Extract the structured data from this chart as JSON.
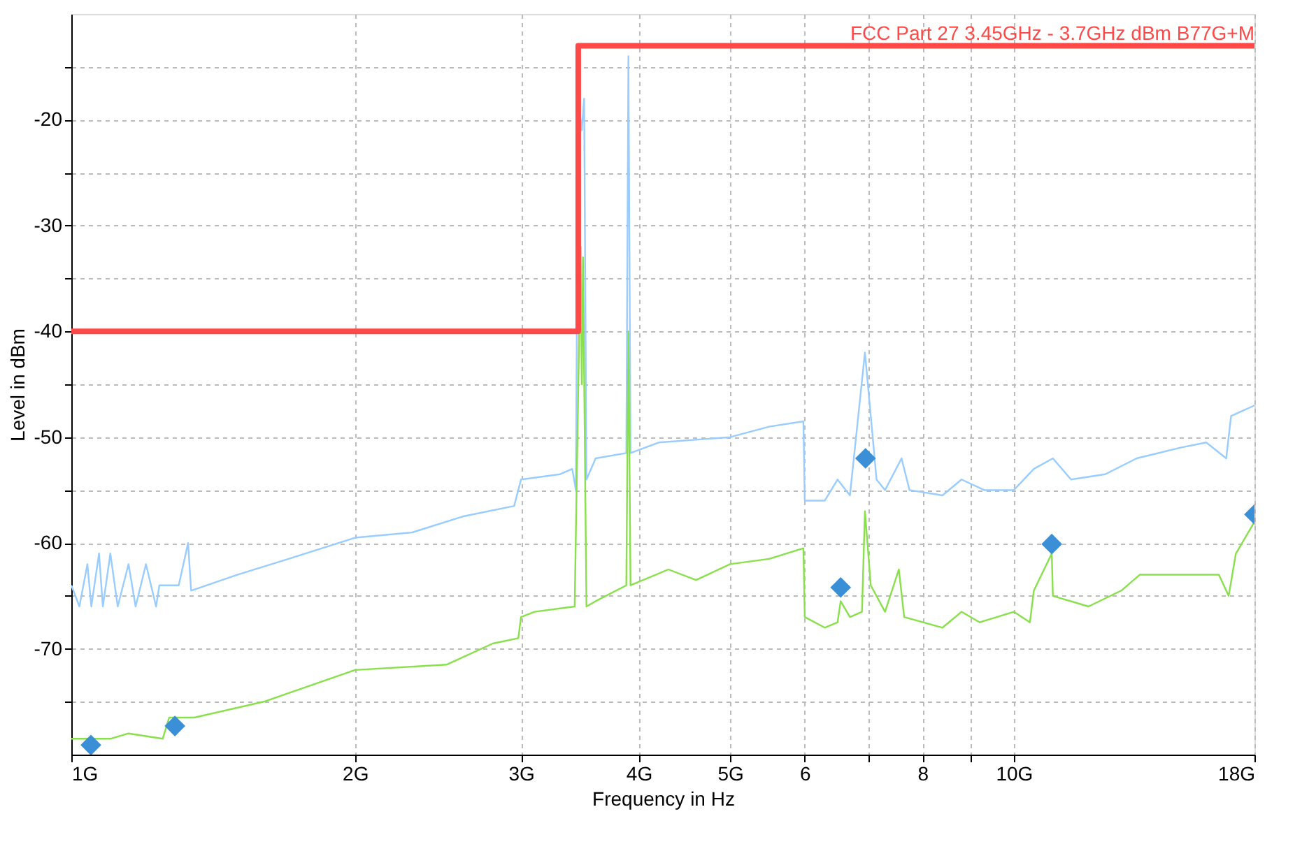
{
  "chart_data": {
    "type": "line",
    "xlabel": "Frequency in Hz",
    "ylabel": "Level in dBm",
    "log": "x",
    "xlim": [
      1,
      18
    ],
    "ylim": [
      -80,
      -10
    ],
    "xticks": [
      {
        "value": 1,
        "label": "1G"
      },
      {
        "value": 2,
        "label": "2G"
      },
      {
        "value": 3,
        "label": "3G"
      },
      {
        "value": 4,
        "label": "4G"
      },
      {
        "value": 5,
        "label": "5G"
      },
      6,
      {
        "value": 7,
        "label": null
      },
      8,
      {
        "value": 9,
        "label": null
      },
      {
        "value": 10,
        "label": "10G"
      },
      {
        "value": 18,
        "label": "18G"
      }
    ],
    "yticks": [
      {
        "value": -75,
        "label": null
      },
      -70,
      {
        "value": -65,
        "label": null
      },
      -60,
      {
        "value": -55,
        "label": null
      },
      -50,
      {
        "value": -45,
        "label": null
      },
      -40,
      {
        "value": -35,
        "label": null
      },
      -30,
      {
        "value": -25,
        "label": null
      },
      -20,
      {
        "value": -15,
        "label": null
      }
    ],
    "grid": true,
    "legend": false,
    "line_style": "solid",
    "series": [
      {
        "marker": "none",
        "color": "#99ccff",
        "x": [
          1.0,
          1.02,
          1.04,
          1.05,
          1.07,
          1.08,
          1.1,
          1.12,
          1.15,
          1.17,
          1.2,
          1.23,
          1.24,
          1.3,
          1.33,
          1.34,
          1.5,
          1.7,
          2.0,
          2.3,
          2.6,
          2.95,
          3.0,
          3.3,
          3.4,
          3.43,
          3.45,
          3.48,
          3.5,
          3.52,
          3.6,
          3.88,
          3.9,
          3.92,
          4.2,
          5.0,
          5.5,
          5.98,
          6.0,
          6.3,
          6.5,
          6.7,
          6.95,
          7.05,
          7.15,
          7.3,
          7.6,
          7.75,
          8.4,
          8.8,
          9.3,
          10.0,
          10.5,
          11.0,
          11.5,
          12.5,
          13.5,
          15.0,
          16.0,
          16.8,
          17.0,
          18.0
        ],
        "values": [
          -64,
          -66,
          -62,
          -66,
          -61,
          -66,
          -61,
          -66,
          -62,
          -66,
          -62,
          -66,
          -64,
          -64,
          -60,
          -64.5,
          -63,
          -61.5,
          -59.5,
          -59,
          -57.5,
          -56.5,
          -54,
          -53.5,
          -53,
          -55,
          -18,
          -21,
          -18,
          -54,
          -52,
          -51.5,
          -14,
          -51.5,
          -50.5,
          -50,
          -49,
          -48.5,
          -56,
          -56,
          -54,
          -55.5,
          -42,
          -48,
          -54,
          -55,
          -52,
          -55,
          -55.5,
          -54,
          -55,
          -55,
          -53,
          -52,
          -54,
          -53.5,
          -52,
          -51,
          -50.5,
          -52,
          -48,
          -47
        ]
      },
      {
        "marker": "none",
        "color": "#88e04a",
        "x": [
          1.0,
          1.1,
          1.15,
          1.25,
          1.27,
          1.35,
          1.6,
          2.0,
          2.5,
          2.8,
          2.98,
          3.0,
          3.1,
          3.42,
          3.47,
          3.48,
          3.49,
          3.52,
          3.6,
          3.88,
          3.9,
          3.92,
          4.3,
          4.6,
          5.0,
          5.5,
          5.98,
          6.0,
          6.3,
          6.5,
          6.55,
          6.7,
          6.9,
          6.95,
          7.05,
          7.3,
          7.55,
          7.65,
          8.4,
          8.8,
          9.2,
          10.0,
          10.4,
          10.5,
          10.97,
          11.0,
          12.0,
          13.0,
          13.6,
          15.0,
          16.5,
          16.9,
          17.2,
          18.0
        ],
        "values": [
          -78.5,
          -78.5,
          -78,
          -78.5,
          -76.5,
          -76.5,
          -75,
          -72,
          -71.5,
          -69.5,
          -69,
          -67,
          -66.5,
          -66,
          -32,
          -45,
          -33,
          -66,
          -65.5,
          -64,
          -40,
          -64,
          -62.5,
          -63.5,
          -62,
          -61.5,
          -60.5,
          -67,
          -68,
          -67.5,
          -65.5,
          -67,
          -66.5,
          -57,
          -64,
          -66.5,
          -62.5,
          -67,
          -68,
          -66.5,
          -67.5,
          -66.5,
          -67.5,
          -64.5,
          -61,
          -65,
          -66,
          -64.5,
          -63,
          -63,
          -63,
          -65,
          -61,
          -58
        ]
      },
      {
        "marker": "none",
        "color": "#ff4848",
        "name": "FCC Part 27 3.45GHz - 3.7GHz dBm B77G+M",
        "x": [
          1,
          3.45,
          3.45,
          18
        ],
        "values": [
          -40,
          -40,
          -13,
          -13
        ]
      },
      {
        "type": "scatter",
        "marker": "diamond",
        "color": "#3a8fd6",
        "x": [
          1.049,
          1.288,
          6.55,
          6.96,
          10.97,
          18
        ],
        "values": [
          -79.1,
          -77.3,
          -64.2,
          -52.0,
          -60.1,
          -57.3
        ]
      }
    ]
  }
}
